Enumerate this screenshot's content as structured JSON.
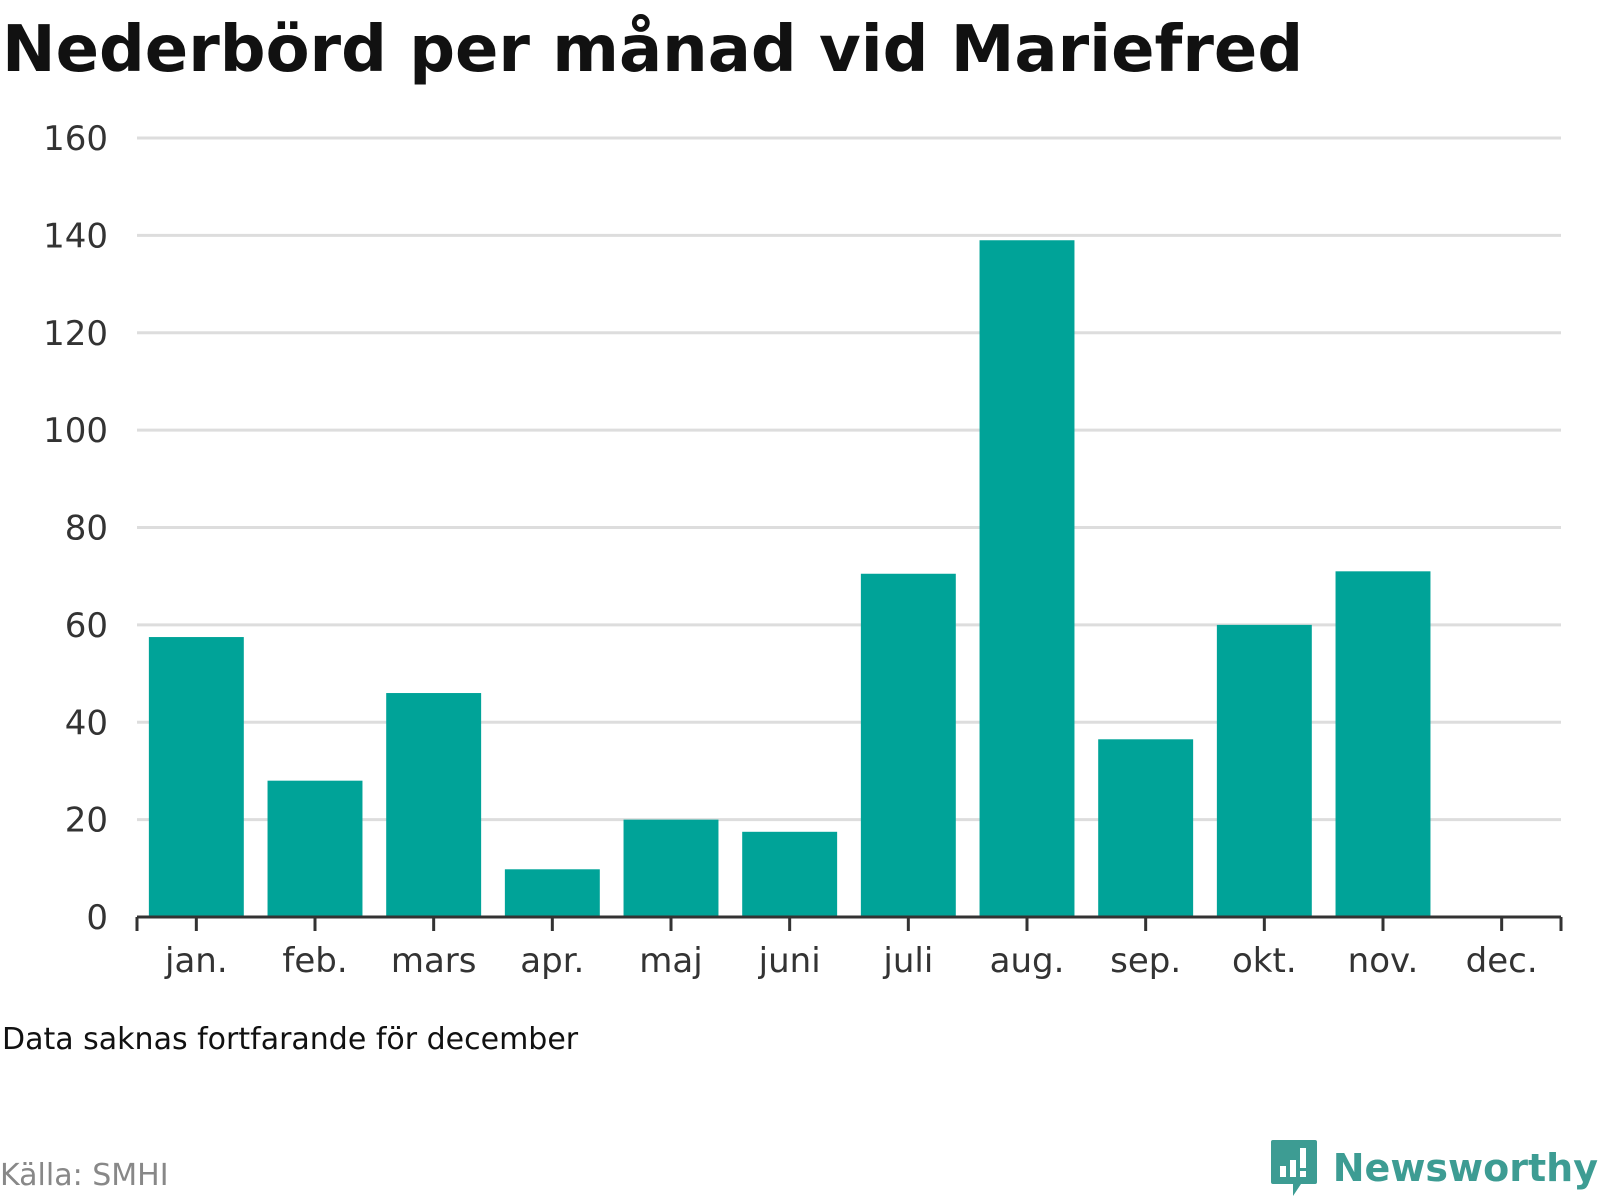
{
  "title": "Nederbörd per månad vid Mariefred",
  "note": "Data saknas fortfarande för december",
  "source": "Källa: SMHI",
  "brand": {
    "name": "Newsworthy",
    "color": "#3d9c93",
    "icon": "bar-chart-speech-bubble-icon"
  },
  "colors": {
    "bar": "#00a398",
    "grid": "#dddddd",
    "axis": "#333333"
  },
  "chart_data": {
    "type": "bar",
    "title": "Nederbörd per månad vid Mariefred",
    "xlabel": "",
    "ylabel": "",
    "ylim": [
      0,
      160
    ],
    "yticks": [
      0,
      20,
      40,
      60,
      80,
      100,
      120,
      140,
      160
    ],
    "grid": true,
    "legend": "none",
    "categories": [
      "jan.",
      "feb.",
      "mars",
      "apr.",
      "maj",
      "juni",
      "juli",
      "aug.",
      "sep.",
      "okt.",
      "nov.",
      "dec."
    ],
    "values": [
      57.5,
      28,
      46,
      9.8,
      20,
      17.5,
      70.5,
      139,
      36.5,
      60,
      71,
      null
    ]
  }
}
